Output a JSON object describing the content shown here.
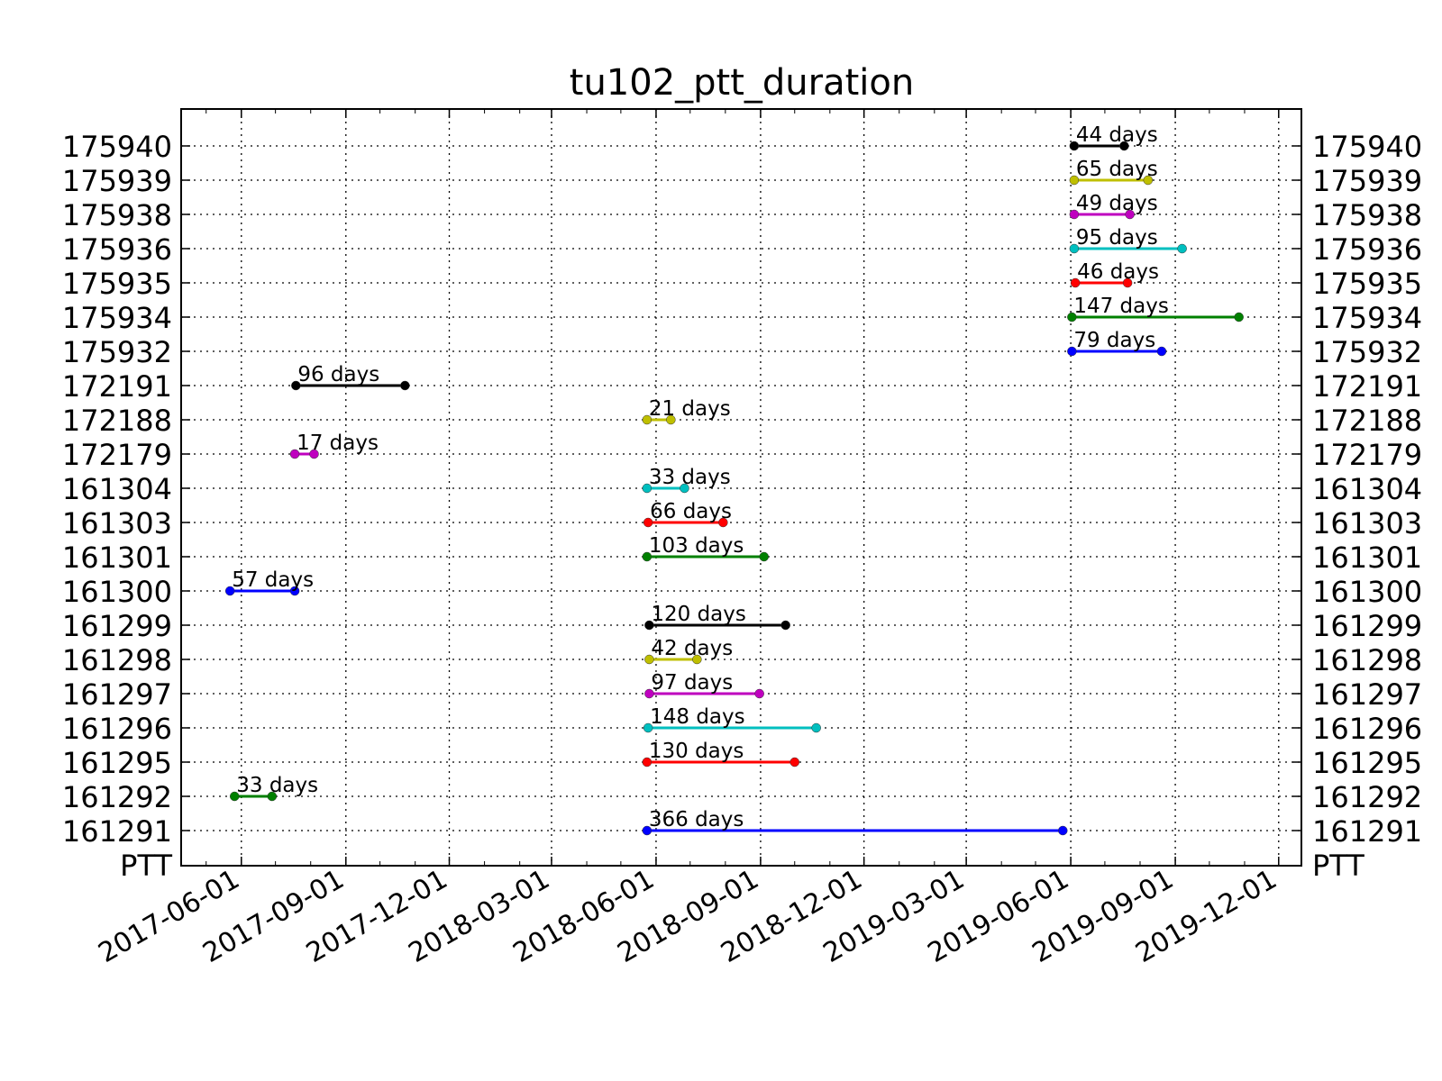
{
  "chart_data": {
    "type": "line",
    "title": "tu102_ptt_duration",
    "xlabel": "",
    "ylabel": "",
    "xlim": [
      "2017-04-09",
      "2019-12-21"
    ],
    "x_ticks": [
      "2017-06-01",
      "2017-09-01",
      "2017-12-01",
      "2018-03-01",
      "2018-06-01",
      "2018-09-01",
      "2018-12-01",
      "2019-03-01",
      "2019-06-01",
      "2019-09-01",
      "2019-12-01"
    ],
    "y_categories": [
      "PTT",
      "161291",
      "161292",
      "161295",
      "161296",
      "161297",
      "161298",
      "161299",
      "161300",
      "161301",
      "161303",
      "161304",
      "172179",
      "172188",
      "172191",
      "175932",
      "175934",
      "175935",
      "175936",
      "175938",
      "175939",
      "175940"
    ],
    "grid": true,
    "mirror_y_labels": true,
    "segment_label_suffix": " days",
    "segments": [
      {
        "ptt": "161291",
        "start": "2018-05-24",
        "end": "2019-05-25",
        "days": 366,
        "color": "#0000ff"
      },
      {
        "ptt": "161292",
        "start": "2017-05-26",
        "end": "2017-06-28",
        "days": 33,
        "color": "#008000"
      },
      {
        "ptt": "161295",
        "start": "2018-05-24",
        "end": "2018-10-01",
        "days": 130,
        "color": "#ff0000"
      },
      {
        "ptt": "161296",
        "start": "2018-05-25",
        "end": "2018-10-20",
        "days": 148,
        "color": "#00bfbf"
      },
      {
        "ptt": "161297",
        "start": "2018-05-26",
        "end": "2018-08-31",
        "days": 97,
        "color": "#bf00bf"
      },
      {
        "ptt": "161298",
        "start": "2018-05-26",
        "end": "2018-07-07",
        "days": 42,
        "color": "#bfbf00"
      },
      {
        "ptt": "161299",
        "start": "2018-05-26",
        "end": "2018-09-23",
        "days": 120,
        "color": "#000000"
      },
      {
        "ptt": "161300",
        "start": "2017-05-22",
        "end": "2017-07-18",
        "days": 57,
        "color": "#0000ff"
      },
      {
        "ptt": "161301",
        "start": "2018-05-24",
        "end": "2018-09-04",
        "days": 103,
        "color": "#008000"
      },
      {
        "ptt": "161303",
        "start": "2018-05-25",
        "end": "2018-07-30",
        "days": 66,
        "color": "#ff0000"
      },
      {
        "ptt": "161304",
        "start": "2018-05-24",
        "end": "2018-06-26",
        "days": 33,
        "color": "#00bfbf"
      },
      {
        "ptt": "172179",
        "start": "2017-07-18",
        "end": "2017-08-04",
        "days": 17,
        "color": "#bf00bf"
      },
      {
        "ptt": "172188",
        "start": "2018-05-24",
        "end": "2018-06-14",
        "days": 21,
        "color": "#bfbf00"
      },
      {
        "ptt": "172191",
        "start": "2017-07-19",
        "end": "2017-10-23",
        "days": 96,
        "color": "#000000"
      },
      {
        "ptt": "175932",
        "start": "2019-06-02",
        "end": "2019-08-20",
        "days": 79,
        "color": "#0000ff"
      },
      {
        "ptt": "175934",
        "start": "2019-06-02",
        "end": "2019-10-27",
        "days": 147,
        "color": "#008000"
      },
      {
        "ptt": "175935",
        "start": "2019-06-05",
        "end": "2019-07-21",
        "days": 46,
        "color": "#ff0000"
      },
      {
        "ptt": "175936",
        "start": "2019-06-04",
        "end": "2019-09-07",
        "days": 95,
        "color": "#00bfbf"
      },
      {
        "ptt": "175938",
        "start": "2019-06-04",
        "end": "2019-07-23",
        "days": 49,
        "color": "#bf00bf"
      },
      {
        "ptt": "175939",
        "start": "2019-06-04",
        "end": "2019-08-08",
        "days": 65,
        "color": "#bfbf00"
      },
      {
        "ptt": "175940",
        "start": "2019-06-04",
        "end": "2019-07-18",
        "days": 44,
        "color": "#000000"
      }
    ]
  }
}
